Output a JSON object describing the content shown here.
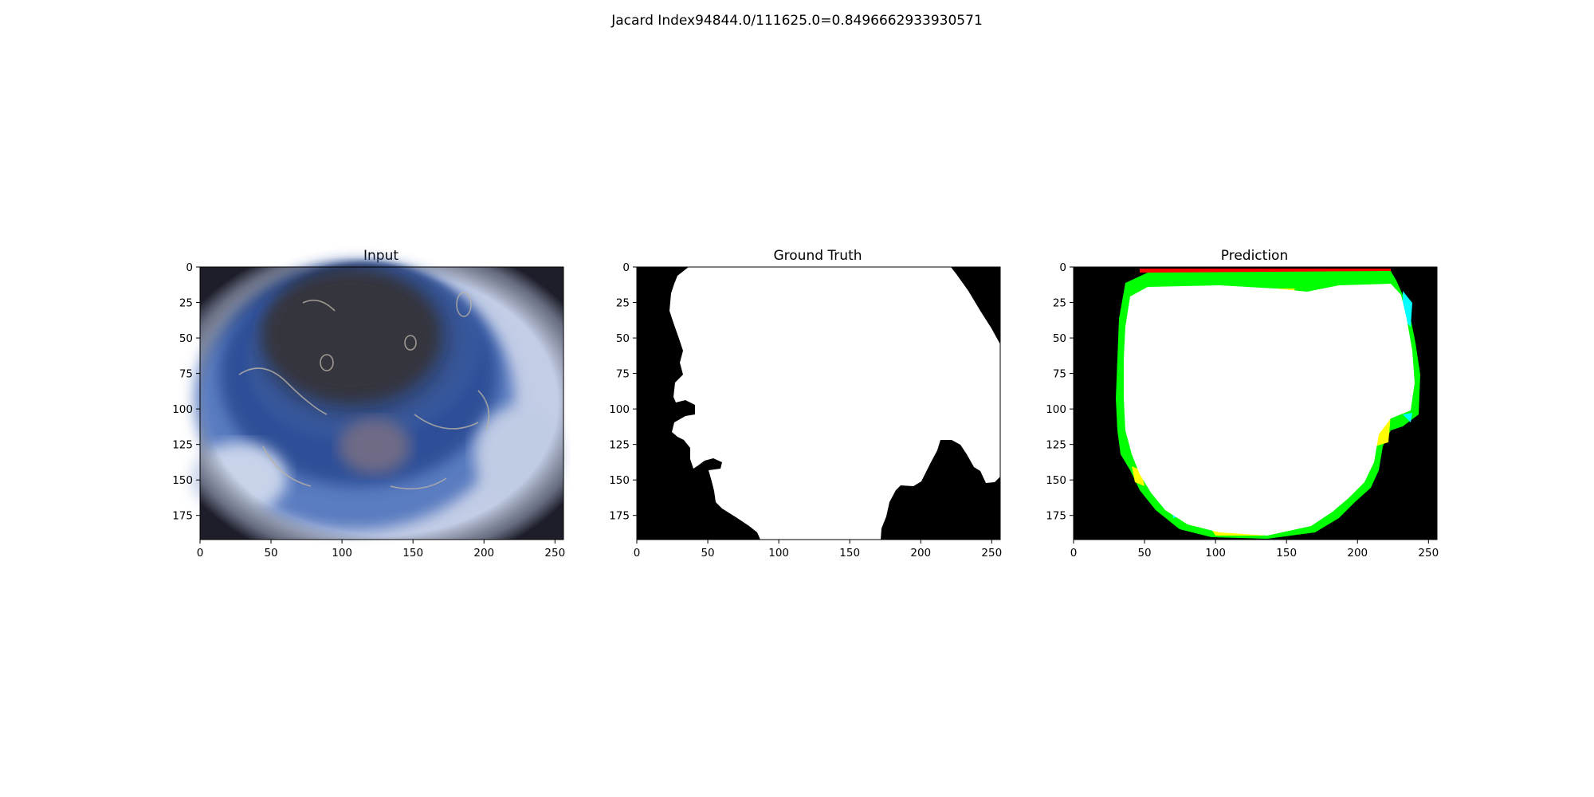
{
  "figure": {
    "suptitle": "Jacard Index94844.0/111625.0=0.8496662933930571"
  },
  "panels": [
    {
      "title": "Input",
      "kind": "photo",
      "x_ticks": [
        "0",
        "50",
        "100",
        "150",
        "200",
        "250"
      ],
      "y_ticks": [
        "0",
        "25",
        "50",
        "75",
        "100",
        "125",
        "150",
        "175"
      ]
    },
    {
      "title": "Ground Truth",
      "kind": "mask",
      "x_ticks": [
        "0",
        "50",
        "100",
        "150",
        "200",
        "250"
      ],
      "y_ticks": [
        "0",
        "25",
        "50",
        "75",
        "100",
        "125",
        "150",
        "175"
      ]
    },
    {
      "title": "Prediction",
      "kind": "overlay",
      "x_ticks": [
        "0",
        "50",
        "100",
        "150",
        "200",
        "250"
      ],
      "y_ticks": [
        "0",
        "25",
        "50",
        "75",
        "100",
        "125",
        "150",
        "175"
      ]
    }
  ],
  "image_extent": {
    "width": 256,
    "height": 192
  },
  "colors": {
    "background": "#ffffff",
    "mask_bg": "#000000",
    "mask_fg": "#ffffff",
    "overlap": "#ffffff",
    "false_positive_green": "#00ff00",
    "false_positive_yellow": "#ffff00",
    "false_negative_cyan": "#00ffff",
    "edge_red": "#ff0000",
    "skin_light": "#c7d2e8",
    "lesion_blue": "#3a5a9a",
    "lesion_dark": "#2a2a3a"
  }
}
